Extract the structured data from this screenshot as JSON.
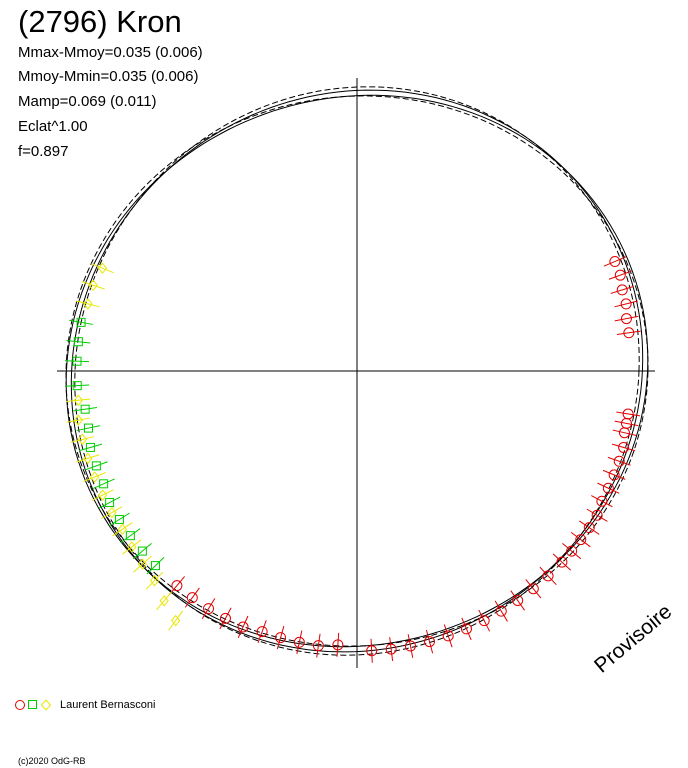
{
  "title": "(2796) Kron",
  "stats": [
    "Mmax-Mmoy=0.035 (0.006)",
    "Mmoy-Mmin=0.035 (0.006)",
    "Mamp=0.069 (0.011)",
    "Eclat^1.00",
    "f=0.897"
  ],
  "legend": {
    "label": "Laurent Bernasconi",
    "markers": [
      "circle",
      "square",
      "diamond"
    ]
  },
  "watermark": "Provisoire",
  "copyright": "(c)2020 OdG-RB",
  "colors": {
    "red": "#e00000",
    "green": "#00cc00",
    "yellow": "#ffff00",
    "axis": "#000000"
  },
  "chart_data": {
    "type": "scatter",
    "subtype": "polar-lightcurve",
    "title": "(2796) Kron",
    "grid": false,
    "axes": "crosshair",
    "mean_radius": 1.0,
    "reference_curves": [
      {
        "style": "solid",
        "amplitude": 0.035,
        "phase_deg": 20
      },
      {
        "style": "solid",
        "amplitude": 0.025,
        "phase_deg": 35
      },
      {
        "style": "dashed",
        "amplitude": 0.03,
        "phase_deg": 10
      },
      {
        "style": "dashed",
        "amplitude": 0.02,
        "phase_deg": 50
      }
    ],
    "series": [
      {
        "marker": "circle",
        "color": "red",
        "points": [
          {
            "angle_deg": 351,
            "radius": 0.97
          },
          {
            "angle_deg": 349,
            "radius": 0.97
          },
          {
            "angle_deg": 347,
            "radius": 0.97
          },
          {
            "angle_deg": 344,
            "radius": 0.98
          },
          {
            "angle_deg": 341,
            "radius": 0.98
          },
          {
            "angle_deg": 338,
            "radius": 0.98
          },
          {
            "angle_deg": 335,
            "radius": 0.98
          },
          {
            "angle_deg": 332,
            "radius": 0.98
          },
          {
            "angle_deg": 329,
            "radius": 0.99
          },
          {
            "angle_deg": 326,
            "radius": 0.99
          },
          {
            "angle_deg": 323,
            "radius": 0.99
          },
          {
            "angle_deg": 320,
            "radius": 0.99
          },
          {
            "angle_deg": 317,
            "radius": 0.99
          },
          {
            "angle_deg": 313,
            "radius": 0.99
          },
          {
            "angle_deg": 309,
            "radius": 0.99
          },
          {
            "angle_deg": 305,
            "radius": 0.99
          },
          {
            "angle_deg": 301,
            "radius": 0.99
          },
          {
            "angle_deg": 297,
            "radius": 0.99
          },
          {
            "angle_deg": 293,
            "radius": 0.99
          },
          {
            "angle_deg": 289,
            "radius": 0.99
          },
          {
            "angle_deg": 285,
            "radius": 0.99
          },
          {
            "angle_deg": 281,
            "radius": 0.99
          },
          {
            "angle_deg": 277,
            "radius": 0.99
          },
          {
            "angle_deg": 273,
            "radius": 0.99
          },
          {
            "angle_deg": 266,
            "radius": 0.97
          },
          {
            "angle_deg": 262,
            "radius": 0.98
          },
          {
            "angle_deg": 258,
            "radius": 0.98
          },
          {
            "angle_deg": 254,
            "radius": 0.98
          },
          {
            "angle_deg": 250,
            "radius": 0.98
          },
          {
            "angle_deg": 246,
            "radius": 0.99
          },
          {
            "angle_deg": 242,
            "radius": 0.99
          },
          {
            "angle_deg": 238,
            "radius": 0.99
          },
          {
            "angle_deg": 234,
            "radius": 0.99
          },
          {
            "angle_deg": 230,
            "radius": 0.99
          },
          {
            "angle_deg": 8,
            "radius": 0.97
          },
          {
            "angle_deg": 11,
            "radius": 0.97
          },
          {
            "angle_deg": 14,
            "radius": 0.98
          },
          {
            "angle_deg": 17,
            "radius": 0.98
          },
          {
            "angle_deg": 20,
            "radius": 0.99
          },
          {
            "angle_deg": 23,
            "radius": 0.99
          }
        ]
      },
      {
        "marker": "square",
        "color": "green",
        "points": [
          {
            "angle_deg": 188,
            "radius": 0.97
          },
          {
            "angle_deg": 192,
            "radius": 0.97
          },
          {
            "angle_deg": 196,
            "radius": 0.98
          },
          {
            "angle_deg": 200,
            "radius": 0.98
          },
          {
            "angle_deg": 204,
            "radius": 0.98
          },
          {
            "angle_deg": 208,
            "radius": 0.99
          },
          {
            "angle_deg": 212,
            "radius": 0.99
          },
          {
            "angle_deg": 216,
            "radius": 0.99
          },
          {
            "angle_deg": 220,
            "radius": 0.99
          },
          {
            "angle_deg": 224,
            "radius": 0.99
          },
          {
            "angle_deg": 170,
            "radius": 0.99
          },
          {
            "angle_deg": 174,
            "radius": 0.99
          },
          {
            "angle_deg": 178,
            "radius": 0.99
          },
          {
            "angle_deg": 183,
            "radius": 0.99
          }
        ]
      },
      {
        "marker": "diamond",
        "color": "yellow",
        "points": [
          {
            "angle_deg": 158,
            "radius": 0.97
          },
          {
            "angle_deg": 162,
            "radius": 0.98
          },
          {
            "angle_deg": 166,
            "radius": 0.98
          },
          {
            "angle_deg": 186,
            "radius": 0.99
          },
          {
            "angle_deg": 190,
            "radius": 1.0
          },
          {
            "angle_deg": 194,
            "radius": 1.0
          },
          {
            "angle_deg": 198,
            "radius": 1.0
          },
          {
            "angle_deg": 202,
            "radius": 1.0
          },
          {
            "angle_deg": 206,
            "radius": 1.0
          },
          {
            "angle_deg": 210,
            "radius": 1.0
          },
          {
            "angle_deg": 214,
            "radius": 1.0
          },
          {
            "angle_deg": 218,
            "radius": 1.01
          },
          {
            "angle_deg": 222,
            "radius": 1.02
          },
          {
            "angle_deg": 226,
            "radius": 1.03
          },
          {
            "angle_deg": 230,
            "radius": 1.06
          },
          {
            "angle_deg": 234,
            "radius": 1.09
          }
        ]
      }
    ]
  }
}
